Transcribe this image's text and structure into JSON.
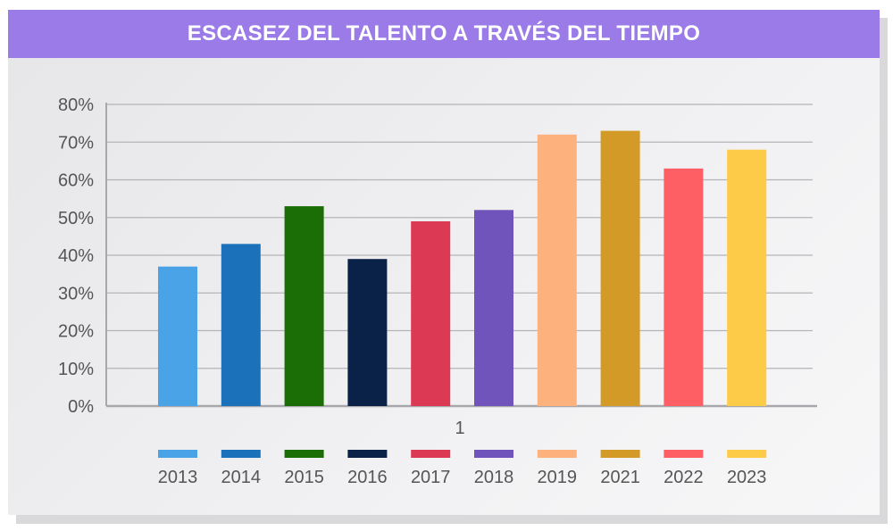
{
  "chart_data": {
    "type": "bar",
    "title": "ESCASEZ DEL TALENTO A TRAVÉS DEL TIEMPO",
    "categories": [
      "1"
    ],
    "series": [
      {
        "name": "2013",
        "values": [
          37
        ],
        "color": "#4aa3e6"
      },
      {
        "name": "2014",
        "values": [
          43
        ],
        "color": "#1b72bb"
      },
      {
        "name": "2015",
        "values": [
          53
        ],
        "color": "#1b6e06"
      },
      {
        "name": "2016",
        "values": [
          39
        ],
        "color": "#0a2148"
      },
      {
        "name": "2017",
        "values": [
          49
        ],
        "color": "#dc3a54"
      },
      {
        "name": "2018",
        "values": [
          52
        ],
        "color": "#7054bc"
      },
      {
        "name": "2019",
        "values": [
          72
        ],
        "color": "#fdb27e"
      },
      {
        "name": "2021",
        "values": [
          73
        ],
        "color": "#d49a28"
      },
      {
        "name": "2022",
        "values": [
          63
        ],
        "color": "#fe5f65"
      },
      {
        "name": "2023",
        "values": [
          68
        ],
        "color": "#fdcb47"
      }
    ],
    "ylim": [
      0,
      80
    ],
    "yticks": [
      "0%",
      "10%",
      "20%",
      "30%",
      "40%",
      "50%",
      "60%",
      "70%",
      "80%"
    ],
    "grid": true,
    "legend": "bottom"
  }
}
